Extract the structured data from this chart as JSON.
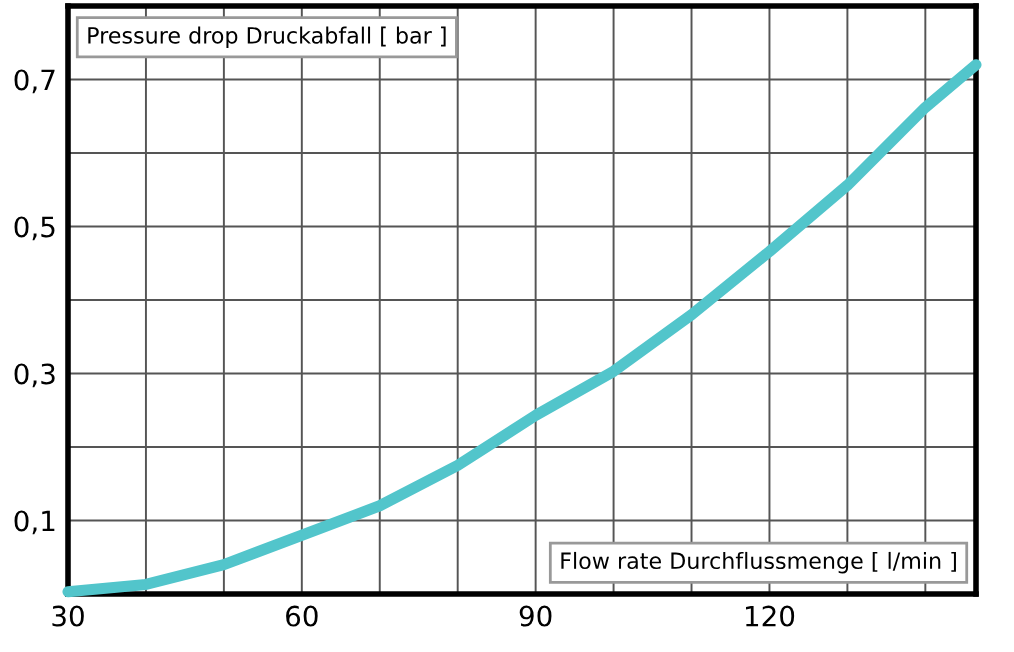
{
  "chart_data": {
    "type": "line",
    "xlabel": "Flow rate Durchflussmenge [ l/min ]",
    "ylabel": "Pressure drop Druckabfall [ bar ]",
    "x": [
      30,
      40,
      50,
      60,
      70,
      80,
      90,
      100,
      110,
      120,
      130,
      140,
      146.5
    ],
    "series": [
      {
        "color": "#52c5cb",
        "values": [
          0.003,
          0.013,
          0.04,
          0.08,
          0.12,
          0.175,
          0.243,
          0.303,
          0.38,
          0.466,
          0.556,
          0.662,
          0.72
        ]
      }
    ],
    "xlim": [
      30,
      146.5
    ],
    "ylim": [
      0,
      0.8
    ],
    "xticks": [
      30,
      {
        "value": 40,
        "label": null
      },
      {
        "value": 50,
        "label": null
      },
      60,
      {
        "value": 70,
        "label": null
      },
      {
        "value": 80,
        "label": null
      },
      90,
      {
        "value": 100,
        "label": null
      },
      {
        "value": 110,
        "label": null
      },
      120,
      {
        "value": 130,
        "label": null
      },
      {
        "value": 140,
        "label": null
      }
    ],
    "yticks": [
      {
        "value": 0.1,
        "label": "0,1"
      },
      {
        "value": 0.2,
        "label": null
      },
      {
        "value": 0.3,
        "label": "0,3"
      },
      {
        "value": 0.4,
        "label": null
      },
      {
        "value": 0.5,
        "label": "0,5"
      },
      {
        "value": 0.6,
        "label": null
      },
      {
        "value": 0.7,
        "label": "0,7"
      }
    ],
    "grid": true,
    "marker": "none",
    "line_style": "solid"
  }
}
